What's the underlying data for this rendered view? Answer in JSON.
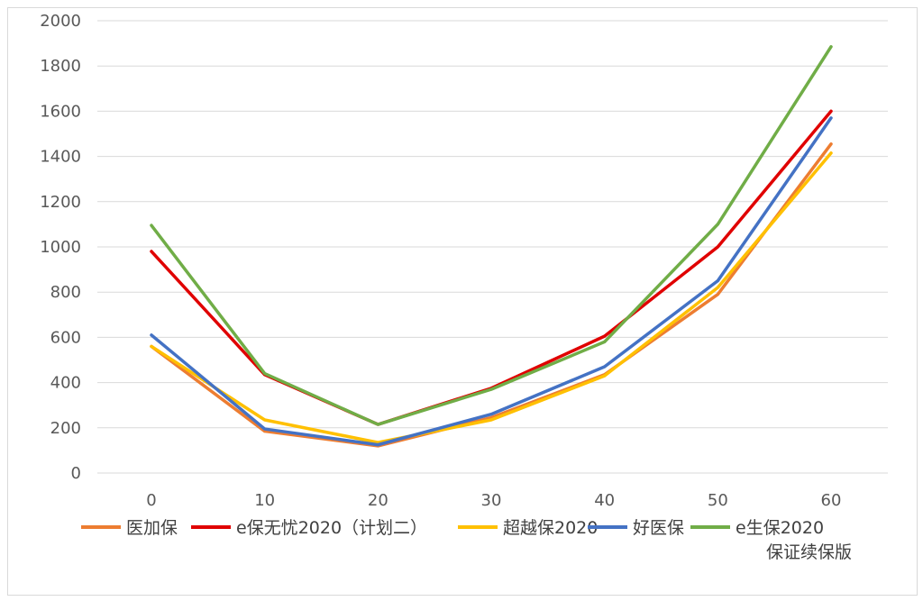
{
  "chart_data": {
    "type": "line",
    "x": [
      0,
      10,
      20,
      30,
      40,
      50,
      60
    ],
    "ylim": [
      0,
      2000
    ],
    "yticks": [
      0,
      200,
      400,
      600,
      800,
      1000,
      1200,
      1400,
      1600,
      1800,
      2000
    ],
    "grid": true,
    "legend_position": "bottom",
    "series": [
      {
        "name": "医加保",
        "color": "#ed7d31",
        "values": [
          560,
          185,
          120,
          245,
          435,
          790,
          1455
        ]
      },
      {
        "name": "e保无忧2020（计划二）",
        "color": "#e00000",
        "values": [
          980,
          435,
          215,
          375,
          605,
          1000,
          1600
        ]
      },
      {
        "name": "超越保2020",
        "color": "#ffc000",
        "values": [
          560,
          235,
          135,
          235,
          430,
          820,
          1415
        ]
      },
      {
        "name": "好医保",
        "color": "#4472c4",
        "values": [
          610,
          195,
          125,
          260,
          470,
          850,
          1570
        ]
      },
      {
        "name": "e生保2020",
        "name_line2": "保证续保版",
        "color": "#70ad47",
        "values": [
          1095,
          440,
          215,
          370,
          580,
          1100,
          1885
        ]
      }
    ]
  }
}
